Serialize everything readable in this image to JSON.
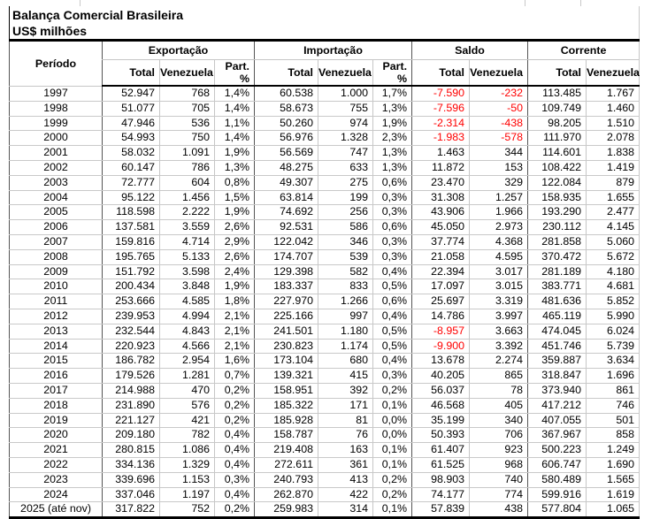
{
  "title": "Balança Comercial Brasileira",
  "subtitle": "US$ milhões",
  "colors": {
    "negative_value": "#ff0000"
  },
  "table": {
    "period_header": "Período",
    "groups": [
      {
        "label": "Exportação",
        "cols": [
          "Total",
          "Venezuela",
          "Part. %"
        ]
      },
      {
        "label": "Importação",
        "cols": [
          "Total",
          "Venezuela",
          "Part. %"
        ]
      },
      {
        "label": "Saldo",
        "cols": [
          "Total",
          "Venezuela"
        ]
      },
      {
        "label": "Corrente",
        "cols": [
          "Total",
          "Venezuela"
        ]
      }
    ],
    "rows": [
      {
        "period": "1997",
        "cells": [
          "52.947",
          "768",
          "1,4%",
          "60.538",
          "1.000",
          "1,7%",
          "-7.590",
          "-232",
          "113.485",
          "1.767"
        ]
      },
      {
        "period": "1998",
        "cells": [
          "51.077",
          "705",
          "1,4%",
          "58.673",
          "755",
          "1,3%",
          "-7.596",
          "-50",
          "109.749",
          "1.460"
        ]
      },
      {
        "period": "1999",
        "cells": [
          "47.946",
          "536",
          "1,1%",
          "50.260",
          "974",
          "1,9%",
          "-2.314",
          "-438",
          "98.205",
          "1.510"
        ]
      },
      {
        "period": "2000",
        "cells": [
          "54.993",
          "750",
          "1,4%",
          "56.976",
          "1.328",
          "2,3%",
          "-1.983",
          "-578",
          "111.970",
          "2.078"
        ]
      },
      {
        "period": "2001",
        "cells": [
          "58.032",
          "1.091",
          "1,9%",
          "56.569",
          "747",
          "1,3%",
          "1.463",
          "344",
          "114.601",
          "1.838"
        ]
      },
      {
        "period": "2002",
        "cells": [
          "60.147",
          "786",
          "1,3%",
          "48.275",
          "633",
          "1,3%",
          "11.872",
          "153",
          "108.422",
          "1.419"
        ]
      },
      {
        "period": "2003",
        "cells": [
          "72.777",
          "604",
          "0,8%",
          "49.307",
          "275",
          "0,6%",
          "23.470",
          "329",
          "122.084",
          "879"
        ]
      },
      {
        "period": "2004",
        "cells": [
          "95.122",
          "1.456",
          "1,5%",
          "63.814",
          "199",
          "0,3%",
          "31.308",
          "1.257",
          "158.935",
          "1.655"
        ]
      },
      {
        "period": "2005",
        "cells": [
          "118.598",
          "2.222",
          "1,9%",
          "74.692",
          "256",
          "0,3%",
          "43.906",
          "1.966",
          "193.290",
          "2.477"
        ]
      },
      {
        "period": "2006",
        "cells": [
          "137.581",
          "3.559",
          "2,6%",
          "92.531",
          "586",
          "0,6%",
          "45.050",
          "2.973",
          "230.112",
          "4.145"
        ]
      },
      {
        "period": "2007",
        "cells": [
          "159.816",
          "4.714",
          "2,9%",
          "122.042",
          "346",
          "0,3%",
          "37.774",
          "4.368",
          "281.858",
          "5.060"
        ]
      },
      {
        "period": "2008",
        "cells": [
          "195.765",
          "5.133",
          "2,6%",
          "174.707",
          "539",
          "0,3%",
          "21.058",
          "4.595",
          "370.472",
          "5.672"
        ]
      },
      {
        "period": "2009",
        "cells": [
          "151.792",
          "3.598",
          "2,4%",
          "129.398",
          "582",
          "0,4%",
          "22.394",
          "3.017",
          "281.189",
          "4.180"
        ]
      },
      {
        "period": "2010",
        "cells": [
          "200.434",
          "3.848",
          "1,9%",
          "183.337",
          "833",
          "0,5%",
          "17.097",
          "3.015",
          "383.771",
          "4.681"
        ]
      },
      {
        "period": "2011",
        "cells": [
          "253.666",
          "4.585",
          "1,8%",
          "227.970",
          "1.266",
          "0,6%",
          "25.697",
          "3.319",
          "481.636",
          "5.852"
        ]
      },
      {
        "period": "2012",
        "cells": [
          "239.953",
          "4.994",
          "2,1%",
          "225.166",
          "997",
          "0,4%",
          "14.786",
          "3.997",
          "465.119",
          "5.990"
        ]
      },
      {
        "period": "2013",
        "cells": [
          "232.544",
          "4.843",
          "2,1%",
          "241.501",
          "1.180",
          "0,5%",
          "-8.957",
          "3.663",
          "474.045",
          "6.024"
        ]
      },
      {
        "period": "2014",
        "cells": [
          "220.923",
          "4.566",
          "2,1%",
          "230.823",
          "1.174",
          "0,5%",
          "-9.900",
          "3.392",
          "451.746",
          "5.739"
        ]
      },
      {
        "period": "2015",
        "cells": [
          "186.782",
          "2.954",
          "1,6%",
          "173.104",
          "680",
          "0,4%",
          "13.678",
          "2.274",
          "359.887",
          "3.634"
        ]
      },
      {
        "period": "2016",
        "cells": [
          "179.526",
          "1.281",
          "0,7%",
          "139.321",
          "415",
          "0,3%",
          "40.205",
          "865",
          "318.847",
          "1.696"
        ]
      },
      {
        "period": "2017",
        "cells": [
          "214.988",
          "470",
          "0,2%",
          "158.951",
          "392",
          "0,2%",
          "56.037",
          "78",
          "373.940",
          "861"
        ]
      },
      {
        "period": "2018",
        "cells": [
          "231.890",
          "576",
          "0,2%",
          "185.322",
          "171",
          "0,1%",
          "46.568",
          "405",
          "417.212",
          "746"
        ]
      },
      {
        "period": "2019",
        "cells": [
          "221.127",
          "421",
          "0,2%",
          "185.928",
          "81",
          "0,0%",
          "35.199",
          "340",
          "407.055",
          "501"
        ]
      },
      {
        "period": "2020",
        "cells": [
          "209.180",
          "782",
          "0,4%",
          "158.787",
          "76",
          "0,0%",
          "50.393",
          "706",
          "367.967",
          "858"
        ]
      },
      {
        "period": "2021",
        "cells": [
          "280.815",
          "1.086",
          "0,4%",
          "219.408",
          "163",
          "0,1%",
          "61.407",
          "923",
          "500.223",
          "1.249"
        ]
      },
      {
        "period": "2022",
        "cells": [
          "334.136",
          "1.329",
          "0,4%",
          "272.611",
          "361",
          "0,1%",
          "61.525",
          "968",
          "606.747",
          "1.690"
        ]
      },
      {
        "period": "2023",
        "cells": [
          "339.696",
          "1.153",
          "0,3%",
          "240.793",
          "413",
          "0,2%",
          "98.903",
          "740",
          "580.489",
          "1.565"
        ]
      },
      {
        "period": "2024",
        "cells": [
          "337.046",
          "1.197",
          "0,4%",
          "262.870",
          "422",
          "0,2%",
          "74.177",
          "774",
          "599.916",
          "1.619"
        ]
      },
      {
        "period": "2025 (até nov)",
        "cells": [
          "317.822",
          "752",
          "0,2%",
          "259.983",
          "314",
          "0,1%",
          "57.839",
          "438",
          "577.804",
          "1.065"
        ]
      }
    ]
  }
}
